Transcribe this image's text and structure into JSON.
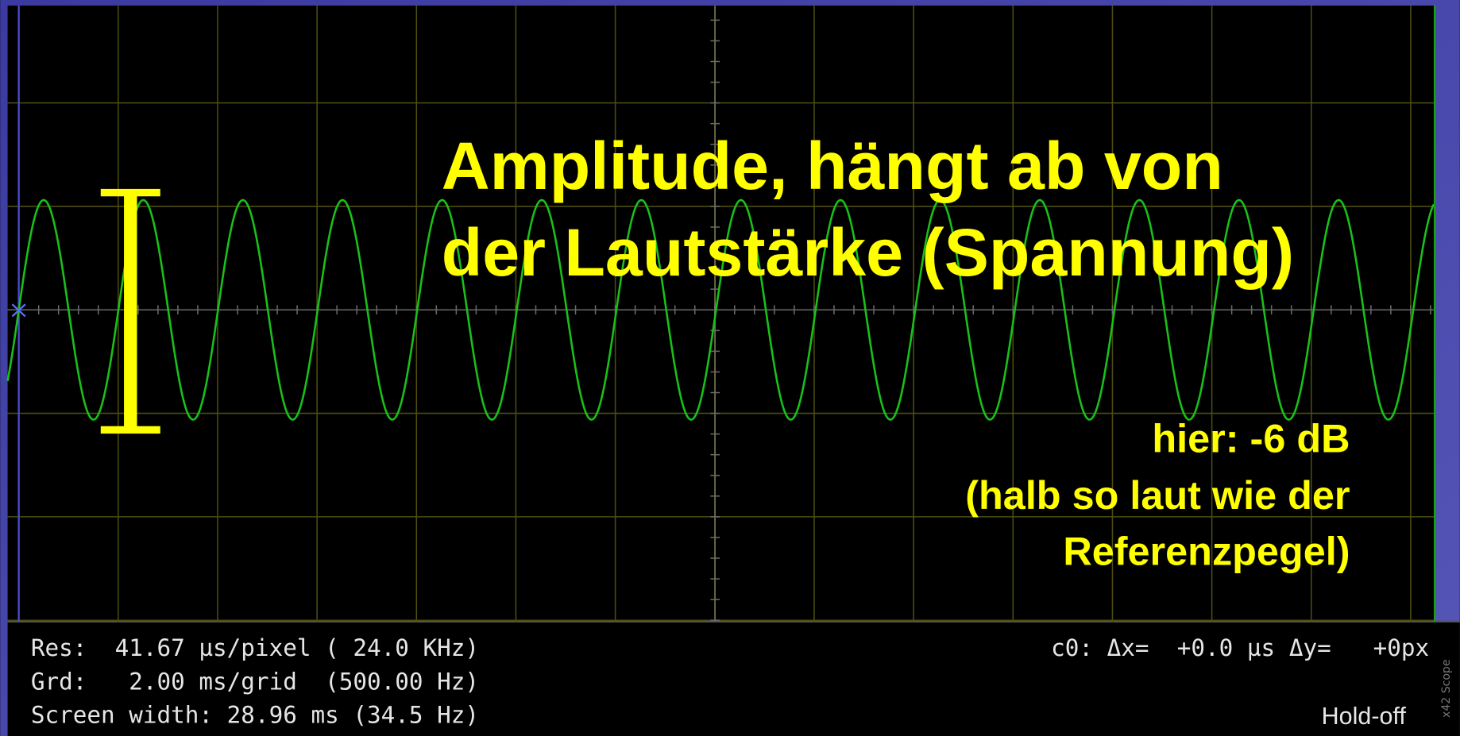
{
  "annotation": {
    "title_lines": [
      "Amplitude, hängt ab von",
      "der Lautstärke (Spannung)"
    ],
    "note_lines": [
      "hier: -6 dB",
      "(halb so laut wie der",
      "Referenzpegel)"
    ]
  },
  "status": {
    "left_lines": [
      "Res:  41.67 µs/pixel ( 24.0 KHz)",
      "Grd:   2.00 ms/grid  (500.00 Hz)",
      "Screen width: 28.96 ms (34.5 Hz)"
    ],
    "cursor": "c0: Δx=  +0.0 µs Δy=   +0px",
    "mode": "Hold-off",
    "app": "x42 Scope"
  }
}
